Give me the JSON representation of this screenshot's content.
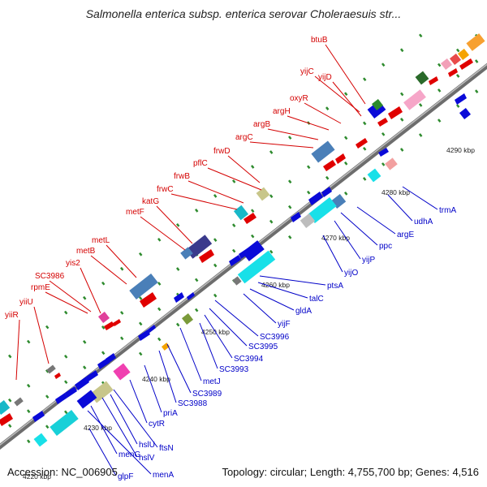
{
  "title": "Salmonella enterica subsp. enterica serovar Choleraesuis str...",
  "footer": {
    "accession": "Accession: NC_006905",
    "summary": "Topology: circular; Length: 4,755,700 bp; Genes: 4,516"
  },
  "colors": {
    "backbone": "#8a8a8a",
    "forward_label": "#d40000",
    "reverse_label": "#0000c8",
    "dot": "#2e8b2e"
  },
  "ticks": [
    {
      "label": "4220 kbp"
    },
    {
      "label": "4230 kbp"
    },
    {
      "label": "4240 kbp"
    },
    {
      "label": "4250 kbp"
    },
    {
      "label": "4260 kbp"
    },
    {
      "label": "4270 kbp"
    },
    {
      "label": "4280 kbp"
    },
    {
      "label": "4290 kbp"
    }
  ],
  "genes_forward": [
    {
      "label": "btuB",
      "color": "#d40000"
    },
    {
      "label": "yijC",
      "color": "#d40000"
    },
    {
      "label": "yijD",
      "color": "#d40000"
    },
    {
      "label": "oxyR",
      "color": "#d40000"
    },
    {
      "label": "argH",
      "color": "#d40000"
    },
    {
      "label": "argB",
      "color": "#d40000"
    },
    {
      "label": "argC",
      "color": "#d40000"
    },
    {
      "label": "frwD",
      "color": "#d40000"
    },
    {
      "label": "pflC",
      "color": "#d40000"
    },
    {
      "label": "frwB",
      "color": "#d40000"
    },
    {
      "label": "frwC",
      "color": "#d40000"
    },
    {
      "label": "katG",
      "color": "#d40000"
    },
    {
      "label": "metF",
      "color": "#d40000"
    },
    {
      "label": "metL",
      "color": "#d40000"
    },
    {
      "label": "metB",
      "color": "#d40000"
    },
    {
      "label": "yis2",
      "color": "#d40000"
    },
    {
      "label": "SC3986",
      "color": "#d40000"
    },
    {
      "label": "rpmE",
      "color": "#d40000"
    },
    {
      "label": "yiiU",
      "color": "#d40000"
    },
    {
      "label": "yiiR",
      "color": "#d40000"
    }
  ],
  "genes_reverse": [
    {
      "label": "trmA"
    },
    {
      "label": "udhA"
    },
    {
      "label": "argE"
    },
    {
      "label": "ppc"
    },
    {
      "label": "yijP"
    },
    {
      "label": "yijO"
    },
    {
      "label": "ptsA"
    },
    {
      "label": "talC"
    },
    {
      "label": "gldA"
    },
    {
      "label": "yijF"
    },
    {
      "label": "SC3996"
    },
    {
      "label": "SC3995"
    },
    {
      "label": "SC3994"
    },
    {
      "label": "SC3993"
    },
    {
      "label": "metJ"
    },
    {
      "label": "SC3989"
    },
    {
      "label": "SC3988"
    },
    {
      "label": "priA"
    },
    {
      "label": "cytR"
    },
    {
      "label": "ftsN"
    },
    {
      "label": "hslU"
    },
    {
      "label": "hslV"
    },
    {
      "label": "menG"
    },
    {
      "label": "menA"
    },
    {
      "label": "glpF"
    }
  ]
}
